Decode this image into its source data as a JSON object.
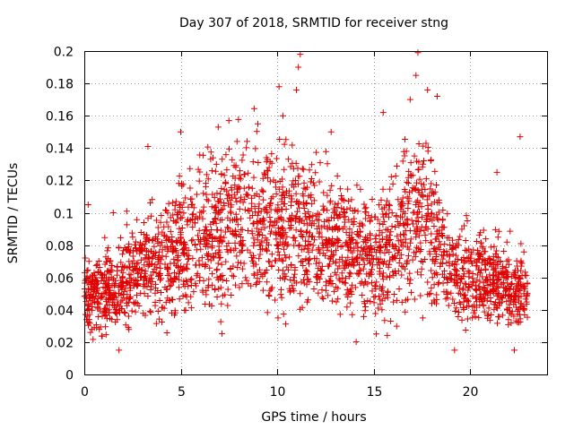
{
  "chart_data": {
    "type": "scatter",
    "title": "Day 307 of 2018, SRMTID for receiver stng",
    "xlabel": "GPS time / hours",
    "ylabel": "SRMTID / TECUs",
    "xlim": [
      0,
      24
    ],
    "ylim": [
      0,
      0.2
    ],
    "xticks": [
      0,
      5,
      10,
      15,
      20
    ],
    "xtick_labels": [
      "0",
      "5",
      "10",
      "15",
      "20"
    ],
    "yticks": [
      0,
      0.02,
      0.04,
      0.06,
      0.08,
      0.1,
      0.12,
      0.14,
      0.16,
      0.18,
      0.2
    ],
    "ytick_labels": [
      "0",
      "0.02",
      "0.04",
      "0.06",
      "0.08",
      "0.1",
      "0.12",
      "0.14",
      "0.16",
      "0.18",
      "0.2"
    ],
    "grid": true,
    "marker": "+",
    "color": "#e00000",
    "series": [
      {
        "name": "SRMTID",
        "profile": [
          {
            "x": 0,
            "y": 0.05
          },
          {
            "x": 1,
            "y": 0.052
          },
          {
            "x": 2,
            "y": 0.055
          },
          {
            "x": 3,
            "y": 0.068
          },
          {
            "x": 4,
            "y": 0.065
          },
          {
            "x": 5,
            "y": 0.08
          },
          {
            "x": 6,
            "y": 0.085
          },
          {
            "x": 7,
            "y": 0.09
          },
          {
            "x": 8,
            "y": 0.095
          },
          {
            "x": 9,
            "y": 0.095
          },
          {
            "x": 10,
            "y": 0.09
          },
          {
            "x": 11,
            "y": 0.09
          },
          {
            "x": 12,
            "y": 0.085
          },
          {
            "x": 13,
            "y": 0.08
          },
          {
            "x": 14,
            "y": 0.075
          },
          {
            "x": 15,
            "y": 0.075
          },
          {
            "x": 16,
            "y": 0.08
          },
          {
            "x": 17,
            "y": 0.1
          },
          {
            "x": 18,
            "y": 0.095
          },
          {
            "x": 19,
            "y": 0.065
          },
          {
            "x": 20,
            "y": 0.06
          },
          {
            "x": 21,
            "y": 0.06
          },
          {
            "x": 22,
            "y": 0.055
          },
          {
            "x": 23,
            "y": 0.05
          }
        ],
        "highlights": [
          {
            "x": 11.2,
            "y": 0.198
          },
          {
            "x": 11.1,
            "y": 0.19
          },
          {
            "x": 10.1,
            "y": 0.178
          },
          {
            "x": 17.3,
            "y": 0.199
          },
          {
            "x": 17.2,
            "y": 0.185
          },
          {
            "x": 17.8,
            "y": 0.176
          },
          {
            "x": 16.9,
            "y": 0.17
          },
          {
            "x": 18.3,
            "y": 0.172
          },
          {
            "x": 7.5,
            "y": 0.157
          },
          {
            "x": 11.0,
            "y": 0.176
          },
          {
            "x": 10.3,
            "y": 0.16
          },
          {
            "x": 9.0,
            "y": 0.155
          },
          {
            "x": 5.0,
            "y": 0.15
          },
          {
            "x": 12.8,
            "y": 0.15
          },
          {
            "x": 3.3,
            "y": 0.141
          },
          {
            "x": 22.6,
            "y": 0.147
          },
          {
            "x": 15.5,
            "y": 0.162
          },
          {
            "x": 1.8,
            "y": 0.015
          },
          {
            "x": 19.2,
            "y": 0.015
          },
          {
            "x": 22.3,
            "y": 0.015
          },
          {
            "x": 0.2,
            "y": 0.105
          },
          {
            "x": 1.5,
            "y": 0.1
          },
          {
            "x": 2.2,
            "y": 0.101
          },
          {
            "x": 21.4,
            "y": 0.125
          }
        ]
      }
    ]
  }
}
